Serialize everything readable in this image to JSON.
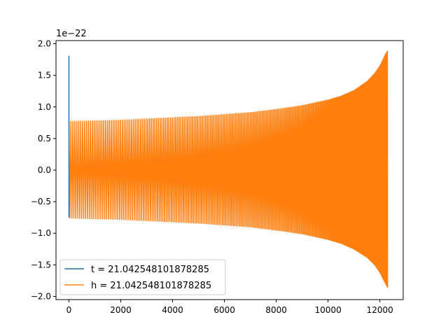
{
  "chart_data": {
    "type": "line",
    "title": "",
    "xlabel": "",
    "ylabel": "",
    "y_offset_label": "1e−22",
    "xlim": [
      -500,
      12900
    ],
    "ylim": [
      -2.05,
      2.05
    ],
    "x_ticks": [
      0,
      2000,
      4000,
      6000,
      8000,
      10000,
      12000
    ],
    "x_tick_labels": [
      "0",
      "2000",
      "4000",
      "6000",
      "8000",
      "10000",
      "12000"
    ],
    "y_ticks": [
      -2.0,
      -1.5,
      -1.0,
      -0.5,
      0.0,
      0.5,
      1.0,
      1.5,
      2.0
    ],
    "y_tick_labels": [
      "−2.0",
      "−1.5",
      "−1.0",
      "−0.5",
      "0.0",
      "0.5",
      "1.0",
      "1.5",
      "2.0"
    ],
    "grid": false,
    "legend_position": "lower-left",
    "colors": {
      "template": "#1f77b4",
      "strain": "#ff7f0e"
    },
    "series": [
      {
        "name": "t = 21.042548101878285",
        "x": [
          0,
          0,
          0,
          0,
          0
        ],
        "y": [
          0.0,
          1.81,
          0.0,
          -0.75,
          0.0
        ]
      },
      {
        "name": "h = 21.042548101878285",
        "envelope_x": [
          0,
          1000,
          2000,
          3000,
          4000,
          5000,
          6000,
          7000,
          8000,
          9000,
          10000,
          10500,
          11000,
          11500,
          11800,
          12000,
          12100,
          12200,
          12300
        ],
        "envelope_upper": [
          0.77,
          0.78,
          0.79,
          0.81,
          0.83,
          0.85,
          0.88,
          0.91,
          0.96,
          1.02,
          1.11,
          1.17,
          1.26,
          1.4,
          1.53,
          1.65,
          1.73,
          1.82,
          1.89
        ],
        "envelope_lower": [
          -0.76,
          -0.77,
          -0.78,
          -0.8,
          -0.82,
          -0.84,
          -0.87,
          -0.9,
          -0.95,
          -1.01,
          -1.1,
          -1.16,
          -1.25,
          -1.38,
          -1.5,
          -1.62,
          -1.7,
          -1.78,
          -1.86
        ]
      }
    ]
  }
}
